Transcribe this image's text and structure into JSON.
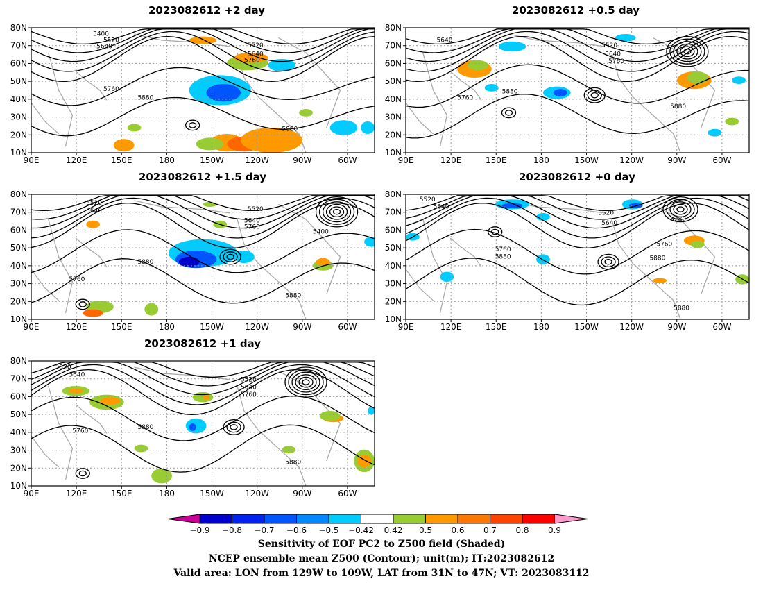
{
  "panels": [
    {
      "title": "2023082612 +2 day",
      "low": [
        [
          1.08,
          0.33,
          5
        ],
        [
          0.66,
          1.2,
          3
        ],
        [
          0.47,
          0.78,
          2
        ]
      ],
      "blobs": [
        [
          "#00ccff",
          0.55,
          0.5,
          0.09,
          0.12
        ],
        [
          "#0055ff",
          0.56,
          0.52,
          0.05,
          0.07
        ],
        [
          "#99cc33",
          0.63,
          0.28,
          0.06,
          0.06
        ],
        [
          "#ff9900",
          0.64,
          0.24,
          0.05,
          0.04
        ],
        [
          "#ff9900",
          0.57,
          0.92,
          0.05,
          0.07
        ],
        [
          "#ff6600",
          0.62,
          0.93,
          0.05,
          0.06
        ],
        [
          "#ff9900",
          0.7,
          0.9,
          0.09,
          0.1
        ],
        [
          "#99cc33",
          0.52,
          0.93,
          0.04,
          0.05
        ],
        [
          "#00ccff",
          0.91,
          0.8,
          0.04,
          0.06
        ],
        [
          "#00ccff",
          0.98,
          0.8,
          0.02,
          0.05
        ],
        [
          "#ff9900",
          0.27,
          0.94,
          0.03,
          0.05
        ],
        [
          "#99cc33",
          0.3,
          0.8,
          0.02,
          0.03
        ],
        [
          "#99cc33",
          0.8,
          0.68,
          0.02,
          0.03
        ],
        [
          "#00ccff",
          0.73,
          0.3,
          0.04,
          0.05
        ],
        [
          "#ff9900",
          0.5,
          0.1,
          0.04,
          0.03
        ]
      ],
      "clabels": [
        [
          "5400",
          0.18,
          0.02
        ],
        [
          "5520",
          0.21,
          0.07
        ],
        [
          "5640",
          0.19,
          0.12
        ],
        [
          "5520",
          0.63,
          0.11
        ],
        [
          "5640",
          0.63,
          0.18
        ],
        [
          "5760",
          0.62,
          0.23
        ],
        [
          "5760",
          0.21,
          0.46
        ],
        [
          "5880",
          0.31,
          0.53
        ],
        [
          "5880",
          0.73,
          0.78
        ]
      ]
    },
    {
      "title": "2023082612 +0.5 day",
      "low": [
        [
          0.82,
          0.19,
          6
        ],
        [
          0.55,
          0.54,
          3
        ],
        [
          0.3,
          0.68,
          2
        ]
      ],
      "blobs": [
        [
          "#ff9900",
          0.2,
          0.33,
          0.05,
          0.07
        ],
        [
          "#99cc33",
          0.21,
          0.3,
          0.03,
          0.04
        ],
        [
          "#00ccff",
          0.44,
          0.52,
          0.04,
          0.05
        ],
        [
          "#0055ff",
          0.45,
          0.52,
          0.02,
          0.03
        ],
        [
          "#ff9900",
          0.84,
          0.42,
          0.05,
          0.07
        ],
        [
          "#99cc33",
          0.85,
          0.4,
          0.03,
          0.05
        ],
        [
          "#00ccff",
          0.31,
          0.15,
          0.04,
          0.04
        ],
        [
          "#00ccff",
          0.64,
          0.08,
          0.03,
          0.03
        ],
        [
          "#00ccff",
          0.9,
          0.84,
          0.02,
          0.03
        ],
        [
          "#00ccff",
          0.97,
          0.42,
          0.02,
          0.03
        ],
        [
          "#99cc33",
          0.95,
          0.75,
          0.02,
          0.03
        ],
        [
          "#00ccff",
          0.25,
          0.48,
          0.02,
          0.03
        ]
      ],
      "clabels": [
        [
          "5640",
          0.09,
          0.07
        ],
        [
          "5520",
          0.57,
          0.11
        ],
        [
          "5640",
          0.58,
          0.18
        ],
        [
          "5760",
          0.59,
          0.24
        ],
        [
          "5880",
          0.28,
          0.48
        ],
        [
          "5760",
          0.15,
          0.53
        ],
        [
          "5880",
          0.77,
          0.6
        ]
      ]
    },
    {
      "title": "2023082612 +1.5 day",
      "low": [
        [
          0.89,
          0.14,
          6
        ],
        [
          0.58,
          0.5,
          3
        ],
        [
          0.15,
          0.88,
          2
        ]
      ],
      "blobs": [
        [
          "#00ccff",
          0.5,
          0.47,
          0.1,
          0.11
        ],
        [
          "#0055ff",
          0.48,
          0.52,
          0.06,
          0.07
        ],
        [
          "#0000cc",
          0.46,
          0.54,
          0.03,
          0.04
        ],
        [
          "#00ccff",
          0.62,
          0.5,
          0.03,
          0.05
        ],
        [
          "#99cc33",
          0.85,
          0.57,
          0.03,
          0.04
        ],
        [
          "#ff9900",
          0.85,
          0.54,
          0.02,
          0.03
        ],
        [
          "#99cc33",
          0.2,
          0.9,
          0.04,
          0.05
        ],
        [
          "#ff6600",
          0.18,
          0.95,
          0.03,
          0.03
        ],
        [
          "#99cc33",
          0.35,
          0.92,
          0.02,
          0.05
        ],
        [
          "#99cc33",
          0.52,
          0.08,
          0.02,
          0.02
        ],
        [
          "#99cc33",
          0.55,
          0.24,
          0.02,
          0.03
        ],
        [
          "#00ccff",
          0.99,
          0.38,
          0.02,
          0.04
        ],
        [
          "#ff9900",
          0.18,
          0.24,
          0.02,
          0.03
        ]
      ],
      "clabels": [
        [
          "5520",
          0.16,
          0.04
        ],
        [
          "5640",
          0.16,
          0.1
        ],
        [
          "5520",
          0.63,
          0.09
        ],
        [
          "5640",
          0.62,
          0.18
        ],
        [
          "5760",
          0.62,
          0.23
        ],
        [
          "5400",
          0.82,
          0.27
        ],
        [
          "5880",
          0.31,
          0.51
        ],
        [
          "5760",
          0.11,
          0.65
        ],
        [
          "5880",
          0.74,
          0.78
        ]
      ]
    },
    {
      "title": "2023082612 +0 day",
      "low": [
        [
          0.8,
          0.12,
          5
        ],
        [
          0.59,
          0.54,
          3
        ],
        [
          0.26,
          0.3,
          2
        ]
      ],
      "blobs": [
        [
          "#00ccff",
          0.31,
          0.08,
          0.05,
          0.04
        ],
        [
          "#0055ff",
          0.31,
          0.09,
          0.03,
          0.02
        ],
        [
          "#00ccff",
          0.66,
          0.08,
          0.03,
          0.04
        ],
        [
          "#0055ff",
          0.67,
          0.09,
          0.02,
          0.02
        ],
        [
          "#00ccff",
          0.4,
          0.18,
          0.02,
          0.03
        ],
        [
          "#ff9900",
          0.84,
          0.37,
          0.03,
          0.04
        ],
        [
          "#99cc33",
          0.85,
          0.4,
          0.02,
          0.03
        ],
        [
          "#00ccff",
          0.4,
          0.52,
          0.02,
          0.04
        ],
        [
          "#99cc33",
          0.98,
          0.68,
          0.02,
          0.04
        ],
        [
          "#00ccff",
          0.02,
          0.34,
          0.02,
          0.03
        ],
        [
          "#00ccff",
          0.12,
          0.66,
          0.02,
          0.04
        ],
        [
          "#ff9900",
          0.74,
          0.69,
          0.02,
          0.02
        ]
      ],
      "clabels": [
        [
          "5520",
          0.04,
          0.01
        ],
        [
          "5640",
          0.08,
          0.07
        ],
        [
          "5520",
          0.56,
          0.12
        ],
        [
          "5640",
          0.57,
          0.2
        ],
        [
          "5280",
          0.77,
          0.17
        ],
        [
          "5760",
          0.26,
          0.41
        ],
        [
          "5880",
          0.26,
          0.47
        ],
        [
          "5760",
          0.73,
          0.37
        ],
        [
          "5880",
          0.71,
          0.48
        ],
        [
          "5880",
          0.78,
          0.88
        ]
      ]
    },
    {
      "title": "2023082612 +1 day",
      "low": [
        [
          0.8,
          0.17,
          6
        ],
        [
          0.59,
          0.53,
          3
        ],
        [
          0.15,
          0.9,
          2
        ]
      ],
      "blobs": [
        [
          "#99cc33",
          0.22,
          0.33,
          0.05,
          0.06
        ],
        [
          "#ff9900",
          0.23,
          0.32,
          0.03,
          0.03
        ],
        [
          "#99cc33",
          0.13,
          0.24,
          0.04,
          0.04
        ],
        [
          "#ff9900",
          0.13,
          0.24,
          0.02,
          0.02
        ],
        [
          "#99cc33",
          0.5,
          0.29,
          0.03,
          0.04
        ],
        [
          "#ff9900",
          0.51,
          0.29,
          0.01,
          0.02
        ],
        [
          "#00ccff",
          0.48,
          0.52,
          0.03,
          0.06
        ],
        [
          "#0055ff",
          0.47,
          0.53,
          0.01,
          0.03
        ],
        [
          "#ff9900",
          0.88,
          0.46,
          0.03,
          0.03
        ],
        [
          "#99cc33",
          0.87,
          0.44,
          0.03,
          0.04
        ],
        [
          "#99cc33",
          0.97,
          0.8,
          0.03,
          0.09
        ],
        [
          "#ff9900",
          0.97,
          0.8,
          0.02,
          0.05
        ],
        [
          "#99cc33",
          0.75,
          0.71,
          0.02,
          0.03
        ],
        [
          "#99cc33",
          0.38,
          0.92,
          0.03,
          0.06
        ],
        [
          "#00ccff",
          0.99,
          0.4,
          0.01,
          0.03
        ],
        [
          "#99cc33",
          0.32,
          0.7,
          0.02,
          0.03
        ]
      ],
      "clabels": [
        [
          "5520",
          0.07,
          0.02
        ],
        [
          "5640",
          0.11,
          0.08
        ],
        [
          "5520",
          0.61,
          0.12
        ],
        [
          "5640",
          0.61,
          0.18
        ],
        [
          "5760",
          0.61,
          0.24
        ],
        [
          "5760",
          0.12,
          0.53
        ],
        [
          "5880",
          0.31,
          0.5
        ],
        [
          "5880",
          0.74,
          0.78
        ]
      ]
    }
  ],
  "x_ticks": [
    "90E",
    "120E",
    "150E",
    "180",
    "150W",
    "120W",
    "90W",
    "60W"
  ],
  "y_ticks": [
    "80N",
    "70N",
    "60N",
    "50N",
    "40N",
    "30N",
    "20N",
    "10N"
  ],
  "colorbar": {
    "colors": [
      "#cc0099",
      "#0000cc",
      "#0022ee",
      "#0055ff",
      "#0088ff",
      "#00ccff",
      "#ffffff",
      "#99cc33",
      "#ff9900",
      "#ff7700",
      "#ff4400",
      "#ff0000",
      "#ff99cc"
    ],
    "labels": [
      "−0.9",
      "−0.8",
      "−0.7",
      "−0.6",
      "−0.5",
      "−0.42",
      "0.42",
      "0.5",
      "0.6",
      "0.7",
      "0.8",
      "0.9"
    ]
  },
  "caption": {
    "line1": "Sensitivity of EOF PC2 to Z500 field (Shaded)",
    "line2": "NCEP ensemble mean Z500 (Contour); unit(m); IT:2023082612",
    "line3": "Valid area: LON from 129W to 109W, LAT from 31N to 47N; VT: 2023083112"
  }
}
